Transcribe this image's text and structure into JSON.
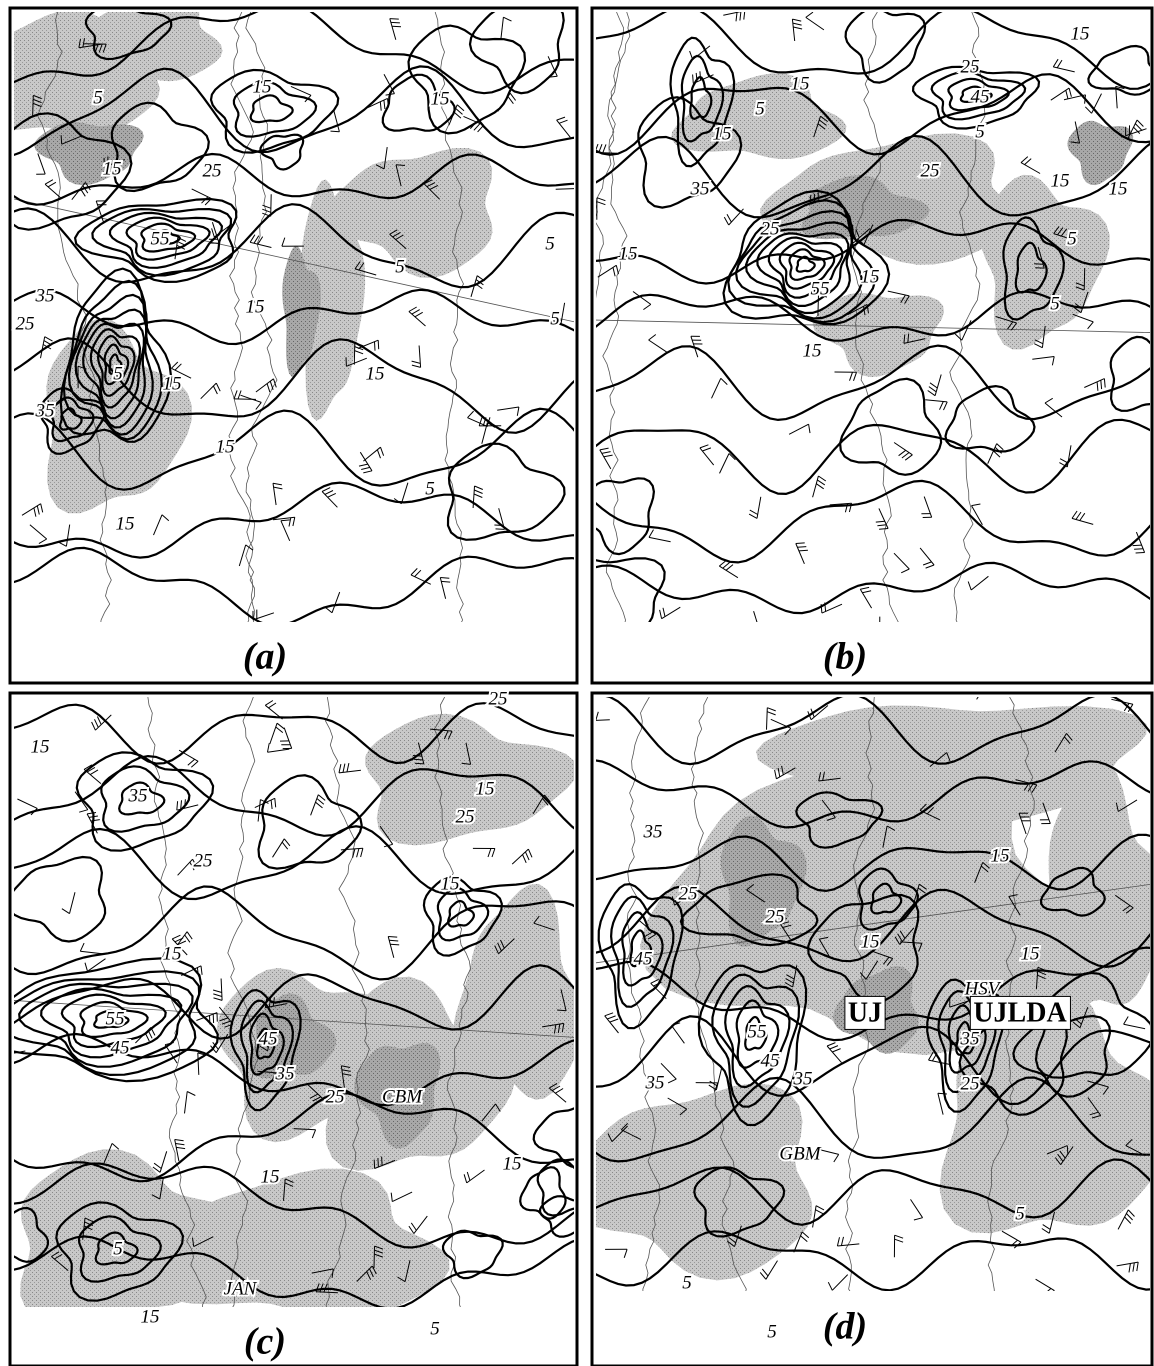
{
  "panels": [
    {
      "label": "(a)",
      "annotations": [
        "15",
        "15",
        "5",
        "15",
        "25",
        "55",
        "35",
        "25",
        "5",
        "35",
        "15",
        "15",
        "15",
        "15",
        "15",
        "5",
        "5",
        "5",
        "5"
      ]
    },
    {
      "label": "(b)",
      "annotations": [
        "15",
        "25",
        "45",
        "5",
        "15",
        "15",
        "15",
        "35",
        "25",
        "55",
        "15",
        "15",
        "15",
        "15",
        "5",
        "5",
        "25",
        "5"
      ]
    },
    {
      "label": "(c)",
      "annotations": [
        "25",
        "15",
        "35",
        "15",
        "25",
        "25",
        "15",
        "15",
        "55",
        "45",
        "45",
        "35",
        "25",
        "CBM",
        "15",
        "15",
        "5",
        "JAN",
        "15",
        "5"
      ]
    },
    {
      "label": "(d)",
      "annotations": [
        "35",
        "15",
        "25",
        "25",
        "15",
        "15",
        "45",
        "HSV",
        "55",
        "45",
        "35",
        "35",
        "35",
        "25",
        "GBM",
        "5",
        "5",
        "5"
      ],
      "boxed_labels": [
        "UJ",
        "UJLDA"
      ]
    }
  ]
}
